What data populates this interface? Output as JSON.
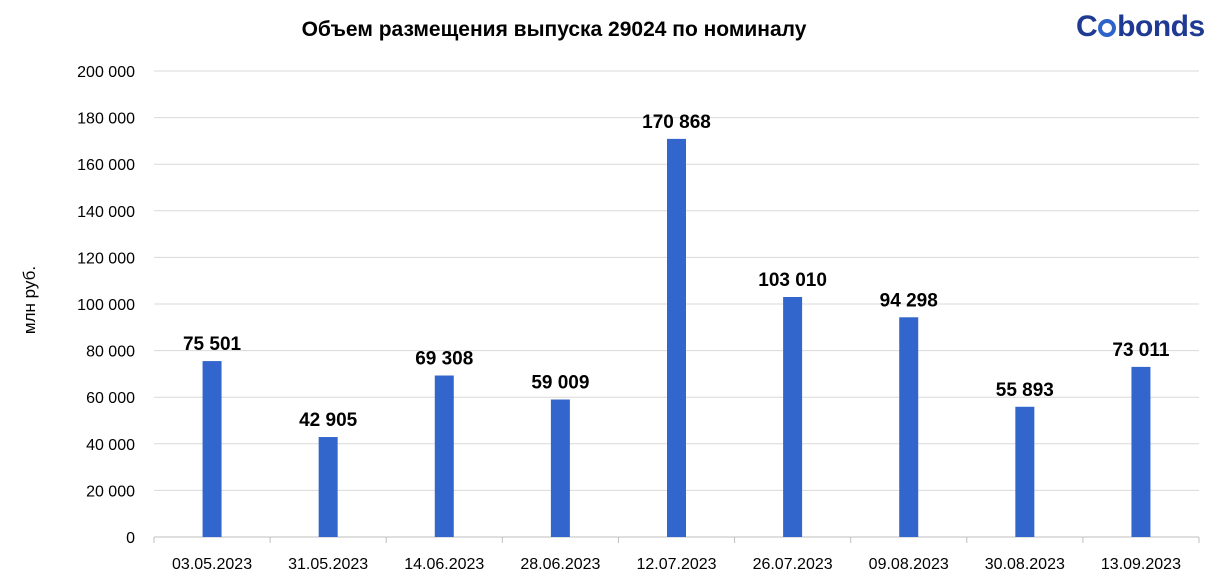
{
  "logo": {
    "text_pre": "C",
    "text_post": "bonds"
  },
  "chart_data": {
    "type": "bar",
    "title": "Объем размещения выпуска 29024 по номиналу",
    "xlabel": "",
    "ylabel": "млн руб.",
    "ylim": [
      0,
      200000
    ],
    "y_ticks": [
      0,
      20000,
      40000,
      60000,
      80000,
      100000,
      120000,
      140000,
      160000,
      180000,
      200000
    ],
    "y_tick_labels": [
      "0",
      "20 000",
      "40 000",
      "60 000",
      "80 000",
      "100 000",
      "120 000",
      "140 000",
      "160 000",
      "180 000",
      "200 000"
    ],
    "categories": [
      "03.05.2023",
      "31.05.2023",
      "14.06.2023",
      "28.06.2023",
      "12.07.2023",
      "26.07.2023",
      "09.08.2023",
      "30.08.2023",
      "13.09.2023"
    ],
    "values": [
      75501,
      42905,
      69308,
      59009,
      170868,
      103010,
      94298,
      55893,
      73011
    ],
    "value_labels": [
      "75 501",
      "42 905",
      "69 308",
      "59 009",
      "170 868",
      "103 010",
      "94 298",
      "55 893",
      "73 011"
    ],
    "bar_color": "#3366cc",
    "grid": true,
    "legend": "none"
  }
}
